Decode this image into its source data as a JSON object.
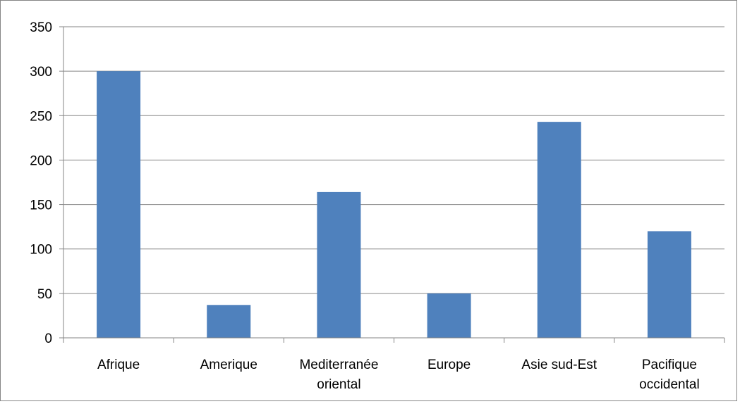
{
  "chart_data": {
    "type": "bar",
    "title": "",
    "xlabel": "",
    "ylabel": "",
    "categories": [
      [
        "Afrique"
      ],
      [
        "Amerique"
      ],
      [
        "Mediterranée",
        "oriental"
      ],
      [
        "Europe"
      ],
      [
        "Asie sud-Est"
      ],
      [
        "Pacifique",
        "occidental"
      ]
    ],
    "values": [
      300,
      37,
      164,
      50,
      243,
      120
    ],
    "ylim": [
      0,
      350
    ],
    "yticks": [
      0,
      50,
      100,
      150,
      200,
      250,
      300,
      350
    ],
    "grid": true,
    "legend": "none",
    "bar_color": "#4F81BD",
    "gridline_color": "#868686",
    "axis_color": "#868686"
  }
}
